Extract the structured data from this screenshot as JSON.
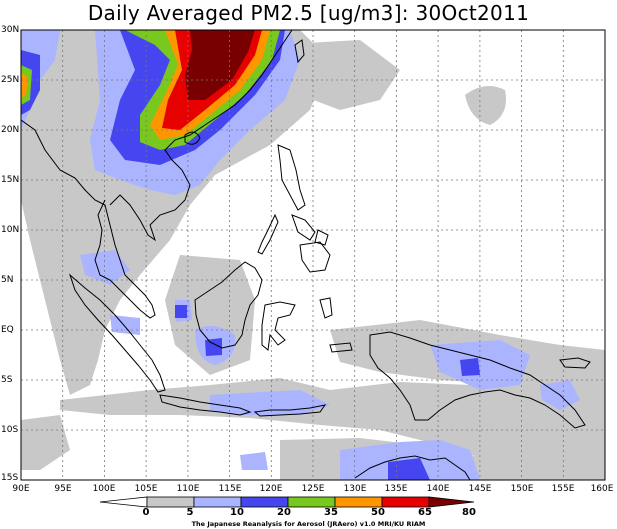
{
  "title": "Daily Averaged PM2.5 [ug/m3]: 30Oct2011",
  "lat_labels": [
    "30N",
    "25N",
    "20N",
    "15N",
    "10N",
    "5N",
    "EQ",
    "5S",
    "10S",
    "15S"
  ],
  "lon_labels": [
    "90E",
    "95E",
    "100E",
    "105E",
    "110E",
    "115E",
    "120E",
    "125E",
    "130E",
    "135E",
    "140E",
    "145E",
    "150E",
    "155E",
    "160E"
  ],
  "colorbar": {
    "levels": [
      "0",
      "5",
      "10",
      "20",
      "35",
      "50",
      "65",
      "80"
    ],
    "colors": [
      "#ffffff",
      "#c8c8c8",
      "#aab4ff",
      "#4646f0",
      "#78c81e",
      "#ff9600",
      "#e60000",
      "#780000"
    ]
  },
  "credit": "The Japanese Reanalysis for Aerosol (JRAero) v1.0 MRI/KU RIAM"
}
